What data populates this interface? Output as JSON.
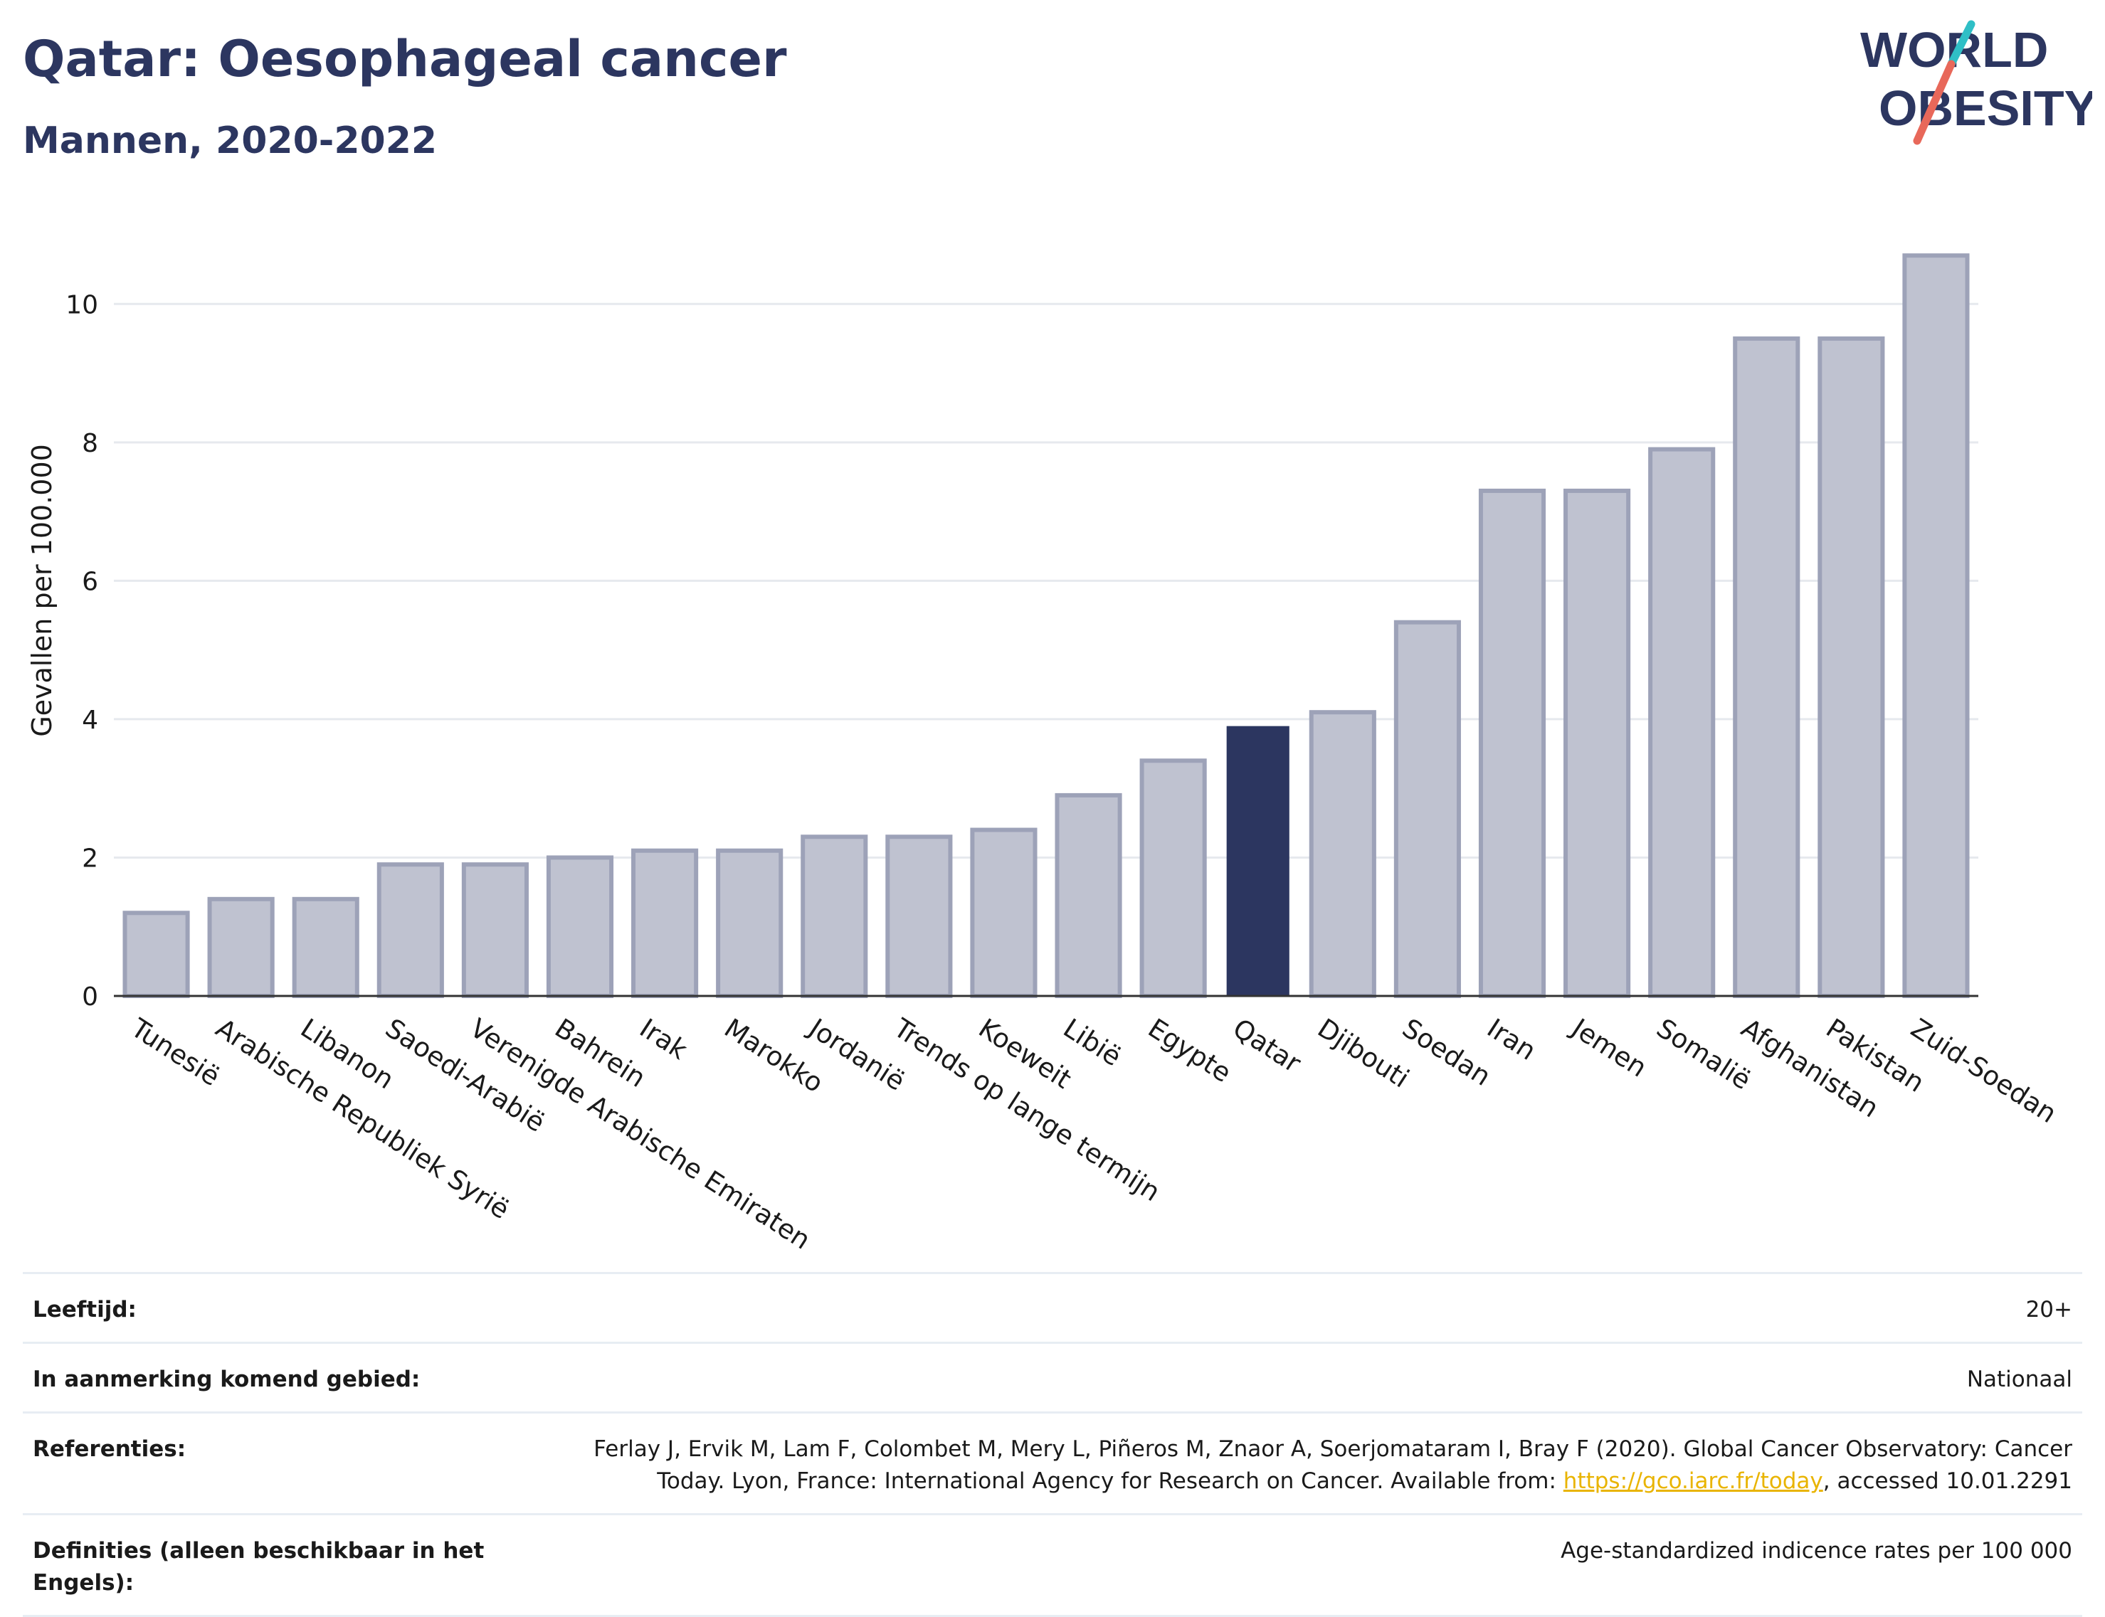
{
  "header": {
    "title": "Qatar: Oesophageal cancer",
    "subtitle": "Mannen, 2020-2022"
  },
  "logo": {
    "line1": "WORLD",
    "line2": "OBESITY",
    "accent_teal": "#2fbfc6",
    "accent_red": "#e8685a"
  },
  "colors": {
    "bar": "#bfc2d0",
    "bar_border": "#9da2b8",
    "highlight": "#2c3660",
    "grid": "#e6e9ee",
    "axis": "#333333"
  },
  "chart_data": {
    "type": "bar",
    "title": "Qatar: Oesophageal cancer",
    "subtitle": "Mannen, 2020-2022",
    "xlabel": "",
    "ylabel": "Gevallen per 100.000",
    "ylim": [
      0,
      11
    ],
    "yticks": [
      0,
      2,
      4,
      6,
      8,
      10
    ],
    "grid": true,
    "highlight": "Qatar",
    "categories": [
      "Tunesië",
      "Arabische Republiek Syrië",
      "Libanon",
      "Saoedi-Arabië",
      "Verenigde Arabische Emiraten",
      "Bahrein",
      "Irak",
      "Marokko",
      "Jordanië",
      "Trends op lange termijn",
      "Koeweit",
      "Libië",
      "Egypte",
      "Qatar",
      "Djibouti",
      "Soedan",
      "Iran",
      "Jemen",
      "Somalië",
      "Afghanistan",
      "Pakistan",
      "Zuid-Soedan"
    ],
    "values": [
      1.2,
      1.4,
      1.4,
      1.9,
      1.9,
      2.0,
      2.1,
      2.1,
      2.3,
      2.3,
      2.4,
      2.9,
      3.4,
      3.9,
      4.1,
      5.4,
      7.3,
      7.3,
      7.9,
      9.5,
      9.5,
      10.7
    ]
  },
  "meta": {
    "rows": [
      {
        "label": "Leeftijd:",
        "value": "20+"
      },
      {
        "label": "In aanmerking komend gebied:",
        "value": "Nationaal"
      },
      {
        "label": "Referenties:",
        "value_pre": "Ferlay J, Ervik M, Lam F, Colombet M, Mery L, Piñeros M, Znaor A, Soerjomataram I, Bray F (2020). Global Cancer Observatory: Cancer Today. Lyon, France: International Agency for Research on Cancer. Available from: ",
        "link": "https://gco.iarc.fr/today",
        "value_post": ", accessed 10.01.2291"
      },
      {
        "label": "Definities (alleen beschikbaar in het Engels):",
        "value": "Age-standardized indicence rates per 100 000"
      }
    ]
  }
}
